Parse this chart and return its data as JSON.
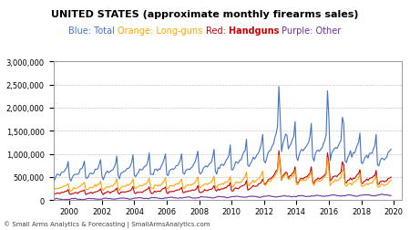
{
  "title": "UNITED STATES (approximate monthly firearms sales)",
  "subtitle_segs": [
    {
      "text": "Blue: Total ",
      "color": "#4472C4"
    },
    {
      "text": "Orange: Long-guns ",
      "color": "#FFA500"
    },
    {
      "text": "Red: ",
      "color": "#CC0000"
    },
    {
      "text": "Handguns ",
      "color": "#CC0000"
    },
    {
      "text": "Purple: Other",
      "color": "#7030A0"
    }
  ],
  "xlim": [
    1999.0,
    2020.5
  ],
  "ylim": [
    0,
    3000000
  ],
  "yticks": [
    0,
    500000,
    1000000,
    1500000,
    2000000,
    2500000,
    3000000
  ],
  "xticks": [
    2000,
    2002,
    2004,
    2006,
    2008,
    2010,
    2012,
    2014,
    2016,
    2018,
    2020
  ],
  "line_colors": {
    "total": "#4472C4",
    "longgun": "#FFA500",
    "handgun": "#CC0000",
    "other": "#7030A0"
  },
  "footer": "© Small Arms Analytics & Forecasting | SmallArmsAnalytics.com",
  "background_color": "#FFFFFF",
  "grid_color": "#AAAAAA",
  "border_color": "#999999",
  "title_fontsize": 8,
  "subtitle_fontsize": 7,
  "tick_fontsize": 6,
  "footer_fontsize": 5
}
